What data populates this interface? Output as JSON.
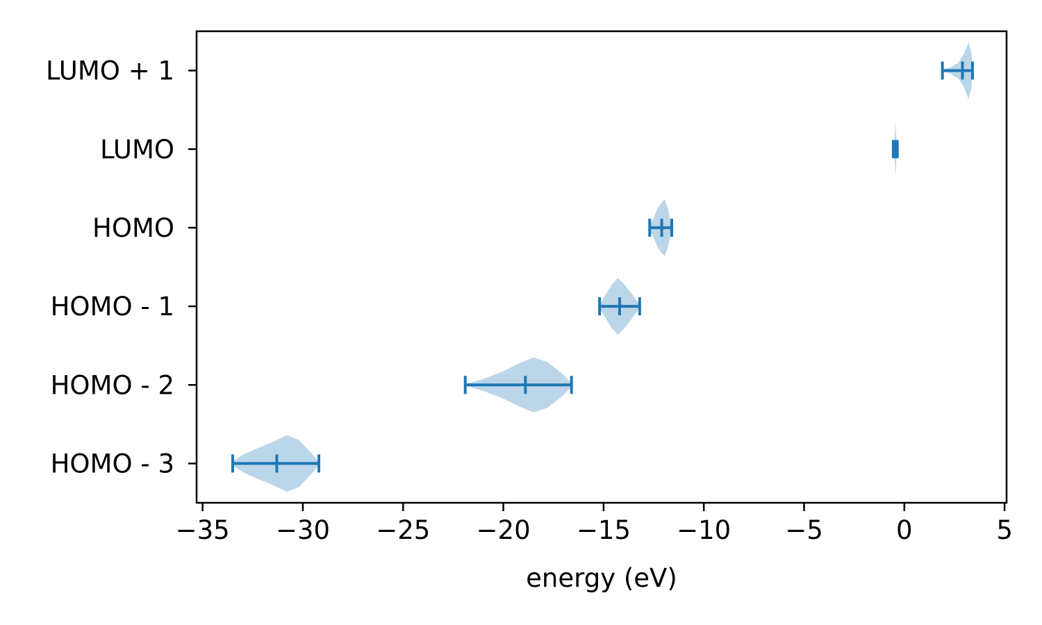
{
  "chart_data": {
    "type": "violin",
    "orientation": "horizontal",
    "title": "",
    "xlabel": "energy (eV)",
    "ylabel": "",
    "xlim": [
      -35.3,
      5.1
    ],
    "xticks": [
      -35,
      -30,
      -25,
      -20,
      -15,
      -10,
      -5,
      0,
      5
    ],
    "xtick_labels": [
      "−35",
      "−30",
      "−25",
      "−20",
      "−15",
      "−10",
      "−5",
      "0",
      "5"
    ],
    "categories": [
      "HOMO - 3",
      "HOMO - 2",
      "HOMO - 1",
      "HOMO",
      "LUMO",
      "LUMO + 1"
    ],
    "grid": false,
    "colors": {
      "body": "#1f77b4",
      "lines": "#1f77b4",
      "fill_opacity": 0.3
    },
    "series": [
      {
        "category": "HOMO - 3",
        "min": -33.5,
        "median": -31.3,
        "max": -29.2,
        "density": [
          [
            -33.5,
            0.05
          ],
          [
            -33.0,
            0.22
          ],
          [
            -32.3,
            0.38
          ],
          [
            -31.5,
            0.55
          ],
          [
            -30.8,
            0.72
          ],
          [
            -30.2,
            0.6
          ],
          [
            -29.6,
            0.28
          ],
          [
            -29.2,
            0.05
          ]
        ]
      },
      {
        "category": "HOMO - 2",
        "min": -21.9,
        "median": -18.9,
        "max": -16.6,
        "density": [
          [
            -21.9,
            0.02
          ],
          [
            -21.0,
            0.15
          ],
          [
            -20.0,
            0.35
          ],
          [
            -19.2,
            0.55
          ],
          [
            -18.5,
            0.7
          ],
          [
            -17.8,
            0.58
          ],
          [
            -17.1,
            0.3
          ],
          [
            -16.6,
            0.05
          ]
        ]
      },
      {
        "category": "HOMO - 1",
        "min": -15.2,
        "median": -14.2,
        "max": -13.2,
        "density": [
          [
            -15.2,
            0.05
          ],
          [
            -14.9,
            0.3
          ],
          [
            -14.6,
            0.55
          ],
          [
            -14.3,
            0.72
          ],
          [
            -14.0,
            0.58
          ],
          [
            -13.6,
            0.32
          ],
          [
            -13.2,
            0.05
          ]
        ]
      },
      {
        "category": "HOMO",
        "min": -12.7,
        "median": -12.1,
        "max": -11.6,
        "density": [
          [
            -12.7,
            0.05
          ],
          [
            -12.5,
            0.25
          ],
          [
            -12.3,
            0.5
          ],
          [
            -12.1,
            0.65
          ],
          [
            -11.95,
            0.72
          ],
          [
            -11.8,
            0.5
          ],
          [
            -11.6,
            0.08
          ]
        ]
      },
      {
        "category": "LUMO",
        "min": -0.55,
        "median": -0.45,
        "max": -0.35,
        "density": [
          [
            -0.55,
            0.06
          ],
          [
            -0.48,
            0.3
          ],
          [
            -0.45,
            0.72
          ],
          [
            -0.4,
            0.3
          ],
          [
            -0.35,
            0.05
          ]
        ]
      },
      {
        "category": "LUMO + 1",
        "min": 1.9,
        "median": 2.9,
        "max": 3.4,
        "density": [
          [
            1.9,
            0.03
          ],
          [
            2.3,
            0.08
          ],
          [
            2.7,
            0.2
          ],
          [
            3.0,
            0.45
          ],
          [
            3.2,
            0.72
          ],
          [
            3.35,
            0.45
          ],
          [
            3.4,
            0.05
          ]
        ]
      }
    ]
  }
}
